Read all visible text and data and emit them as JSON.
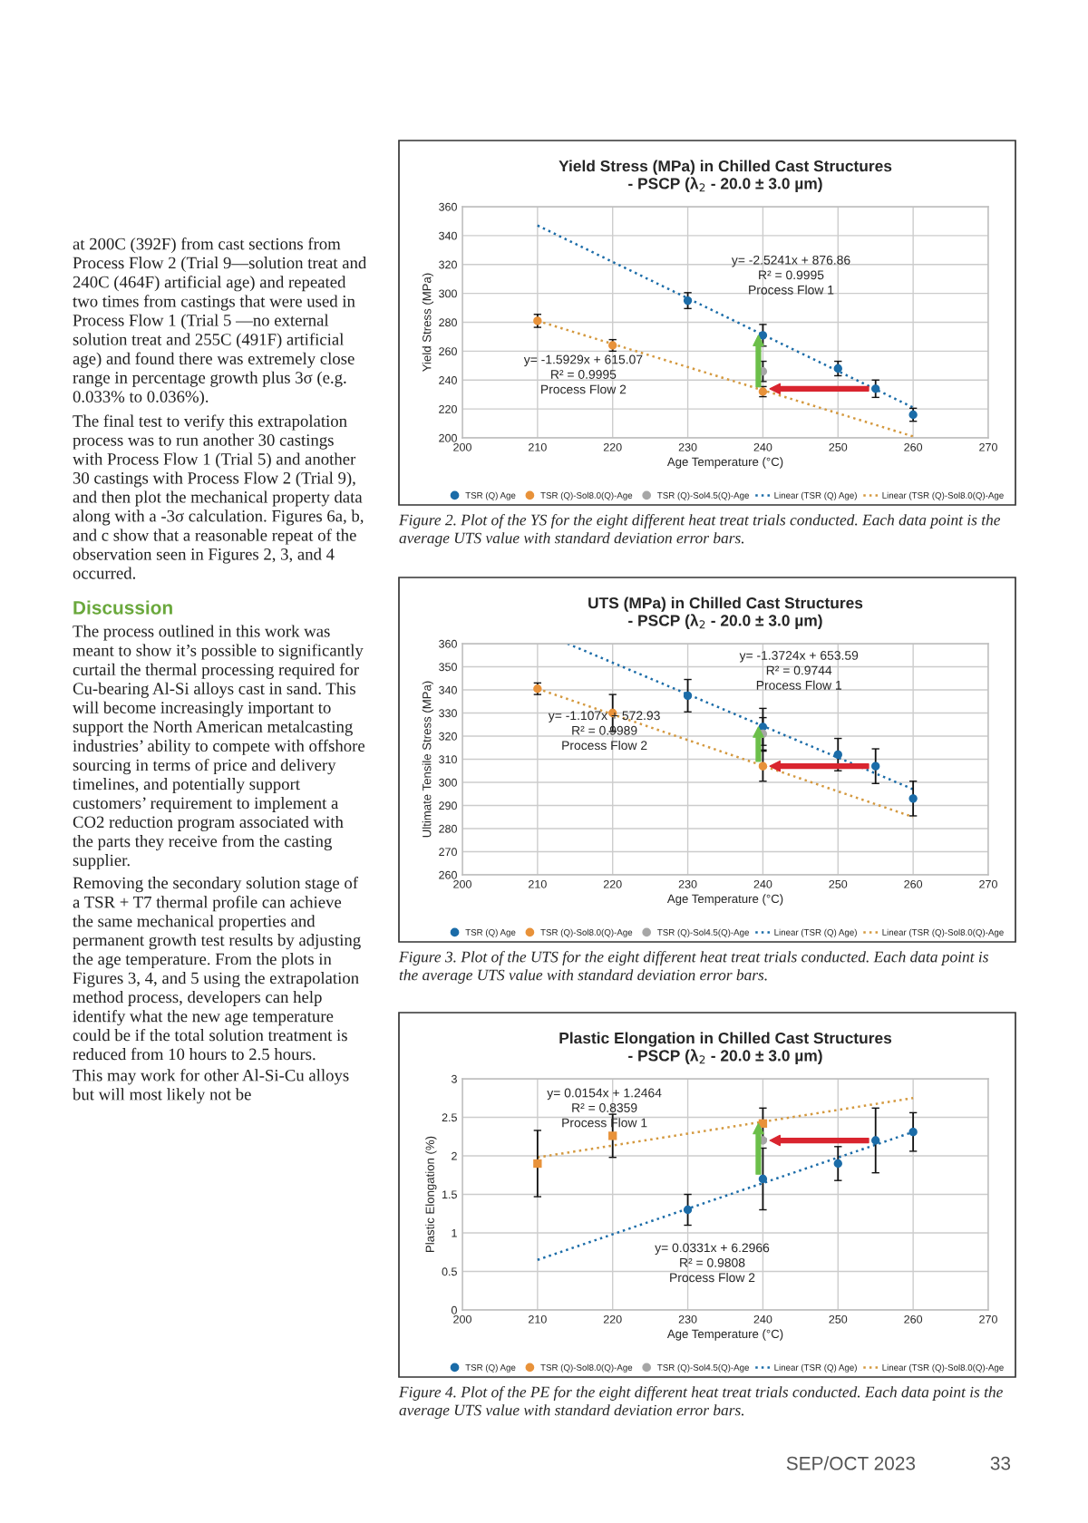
{
  "chart_data": [
    {
      "type": "other",
      "annotations": [
        "at 200C (392F) from cast sections from Process Flow 2 (Trial 9—solution treat and 240C (464F) artificial age) and repeated two times from castings that were used in Process Flow 1 (Trial 5 —no external solution treat and 255C (491F) artificial age) and found there was extremely close range in percentage growth plus 3σ (e.g. 0.033% to 0.036%).",
        "The final test to verify this extrapolation process was to run another 30 castings with Process Flow 1 (Trial 5) and another 30 castings with Process Flow 2 (Trial 9), and then plot the mechanical property data along with a -3σ calculation. Figures 6a, b, and c show that a reasonable repeat of the observation seen in Figures 2, 3, and 4 occurred."
      ]
    },
    {
      "type": "other",
      "title": "Discussion",
      "annotations": [
        "The process outlined in this work was meant to show it’s possible to significantly curtail the thermal processing required for Cu-bearing Al-Si alloys cast in sand. This will become increasingly important to support the North American metalcasting industries’ ability to compete with offshore sourcing in terms of price and delivery timelines, and potentially support customers’ requirement to implement a CO2 reduction program associated with the parts they receive from the casting supplier.",
        "Removing the secondary solution stage of a TSR + T7 thermal profile can achieve the same mechanical properties and permanent growth test results by adjusting the age temperature. From the plots in Figures 3, 4, and 5 using the extrapolation method process, developers can help identify what the new age temperature could be if the total solution treatment is reduced from 10 hours to 2.5 hours.",
        "This may work for other Al-Si-Cu alloys but will most likely not be"
      ]
    },
    {
      "type": "scatter",
      "title": "Yield Stress (MPa) in Chilled Cast Structures\n- PSCP (λ$_{2}$ - 20.0 ± 3.0 µm)",
      "xlabel": "Age Temperature (°C)",
      "ylabel": "Yield Stress (MPa)",
      "xlim": [
        200,
        270
      ],
      "xticks": [
        200,
        210,
        220,
        230,
        240,
        250,
        260,
        270
      ],
      "ylim": [
        200,
        360
      ],
      "yticks": [
        200,
        220,
        240,
        260,
        280,
        300,
        320,
        340,
        360
      ],
      "grid": true,
      "legend": "bottom",
      "series": [
        {
          "name": "TSR (Q) Age",
          "color": "#1b6ca8",
          "marker": "circle",
          "x": [
            230,
            240,
            250,
            255,
            260
          ],
          "values": [
            295,
            271,
            248,
            234,
            216
          ],
          "errors": [
            5.5,
            7.5,
            5,
            6,
            4.5
          ]
        },
        {
          "name": "TSR (Q)-Sol8.0(Q)-Age",
          "color": "#e8923a",
          "marker": "circle",
          "x": [
            210,
            220,
            240
          ],
          "values": [
            281,
            264,
            232
          ],
          "errors": [
            4.5,
            4,
            3.5
          ]
        },
        {
          "name": "TSR (Q)-Sol4.5(Q)-Age",
          "color": "#a6a6a6",
          "marker": "circle",
          "x": [
            240
          ],
          "values": [
            246
          ],
          "errors": [
            7
          ]
        },
        {
          "name": "Linear (TSR (Q) Age)",
          "type": "line",
          "line_style": "dotted",
          "color": "#1b6ca8",
          "x": [
            210,
            260
          ],
          "values": [
            347,
            221
          ]
        },
        {
          "name": "Linear (TSR (Q)-Sol8.0(Q)-Age",
          "type": "line",
          "line_style": "dotted",
          "color": "#d4993f",
          "x": [
            210,
            260
          ],
          "values": [
            281,
            201
          ]
        }
      ],
      "annotations": [
        "y= -2.5241x + 876.86\nR² = 0.9995\nProcess Flow 1",
        "y= -1.5929x + 615.07\nR² = 0.9995\nProcess Flow 2",
        "Figure 2. Plot of the YS for the eight different heat treat trials conducted. Each data point is the average UTS value with standard deviation error bars."
      ]
    },
    {
      "type": "scatter",
      "title": "UTS (MPa) in Chilled Cast Structures\n- PSCP (λ$_{2}$ - 20.0 ± 3.0 µm)",
      "xlabel": "Age Temperature (°C)",
      "ylabel": "Ultimate Tensile Stress (MPa)",
      "xlim": [
        200,
        270
      ],
      "xticks": [
        200,
        210,
        220,
        230,
        240,
        250,
        260,
        270
      ],
      "ylim": [
        260,
        360
      ],
      "yticks": [
        260,
        270,
        280,
        290,
        300,
        310,
        320,
        330,
        340,
        350,
        360
      ],
      "grid": true,
      "legend": "bottom",
      "series": [
        {
          "name": "TSR (Q) Age",
          "color": "#1b6ca8",
          "marker": "circle",
          "x": [
            230,
            240,
            250,
            255,
            260
          ],
          "values": [
            337.5,
            324,
            312,
            307,
            293
          ],
          "errors": [
            7,
            8,
            7,
            7.5,
            7.5
          ]
        },
        {
          "name": "TSR (Q)-Sol8.0(Q)-Age",
          "color": "#e8923a",
          "marker": "circle",
          "x": [
            210,
            220,
            240
          ],
          "values": [
            340.5,
            330,
            307
          ],
          "errors": [
            2.5,
            8,
            6.5
          ]
        },
        {
          "name": "TSR (Q)-Sol4.5(Q)-Age",
          "color": "#a6a6a6",
          "marker": "circle",
          "x": [
            240
          ],
          "values": [
            321
          ],
          "errors": [
            7
          ]
        },
        {
          "name": "Linear (TSR (Q) Age)",
          "type": "line",
          "line_style": "dotted",
          "color": "#1b6ca8",
          "x": [
            214,
            260
          ],
          "values": [
            360,
            297
          ]
        },
        {
          "name": "Linear (TSR (Q)-Sol8.0(Q)-Age",
          "type": "line",
          "line_style": "dotted",
          "color": "#d4993f",
          "x": [
            210,
            260
          ],
          "values": [
            340.5,
            285
          ]
        }
      ],
      "annotations": [
        "y= -1.3724x + 653.59\nR² = 0.9744\nProcess Flow 1",
        "y= -1.107x + 572.93\nR² = 0.9989\nProcess Flow 2",
        "Figure 3. Plot of the UTS for the eight different heat treat trials conducted. Each data point is the average UTS value with standard deviation error bars."
      ]
    },
    {
      "type": "scatter",
      "title": "Plastic Elongation in Chilled Cast Structures\n- PSCP (λ$_{2}$ - 20.0 ± 3.0 µm)",
      "xlabel": "Age Temperature (°C)",
      "ylabel": "Plastic Elongation (%)",
      "xlim": [
        200,
        270
      ],
      "xticks": [
        200,
        210,
        220,
        230,
        240,
        250,
        260,
        270
      ],
      "ylim": [
        0,
        3
      ],
      "yticks": [
        0,
        0.5,
        1,
        1.5,
        2,
        2.5,
        3
      ],
      "grid": true,
      "legend": "bottom",
      "series": [
        {
          "name": "TSR (Q) Age",
          "color": "#1b6ca8",
          "marker": "circle",
          "x": [
            230,
            240,
            250,
            255,
            260
          ],
          "values": [
            1.3,
            1.7,
            1.9,
            2.2,
            2.31
          ],
          "errors": [
            0.2,
            0.4,
            0.22,
            0.42,
            0.25
          ]
        },
        {
          "name": "TSR (Q)-Sol8.0(Q)-Age",
          "color": "#e8923a",
          "marker": "square",
          "x": [
            210,
            220,
            240
          ],
          "values": [
            1.9,
            2.26,
            2.42
          ],
          "errors": [
            0.43,
            0.28,
            0.2
          ]
        },
        {
          "name": "TSR (Q)-Sol4.5(Q)-Age",
          "color": "#a6a6a6",
          "marker": "circle",
          "x": [
            240
          ],
          "values": [
            2.2
          ],
          "errors": [
            null
          ]
        },
        {
          "name": "Linear (TSR (Q) Age)",
          "type": "line",
          "line_style": "dotted",
          "color": "#1b6ca8",
          "x": [
            210,
            260
          ],
          "values": [
            0.65,
            2.31
          ]
        },
        {
          "name": "Linear (TSR (Q)-Sol8.0(Q)-Age",
          "type": "line",
          "line_style": "dotted",
          "color": "#d4993f",
          "x": [
            210,
            260
          ],
          "values": [
            1.98,
            2.75
          ]
        }
      ],
      "annotations": [
        "y= 0.0154x + 1.2464\nR² = 0.8359\nProcess Flow 1",
        "y= 0.0331x + 6.2966\nR² = 0.9808\nProcess Flow 2",
        "Figure 4. Plot of the PE for the eight different heat treat trials conducted. Each data point is the average UTS value with standard deviation error bars."
      ]
    },
    {
      "type": "other",
      "annotations": [
        "SEP/OCT 2023",
        "33"
      ]
    }
  ]
}
